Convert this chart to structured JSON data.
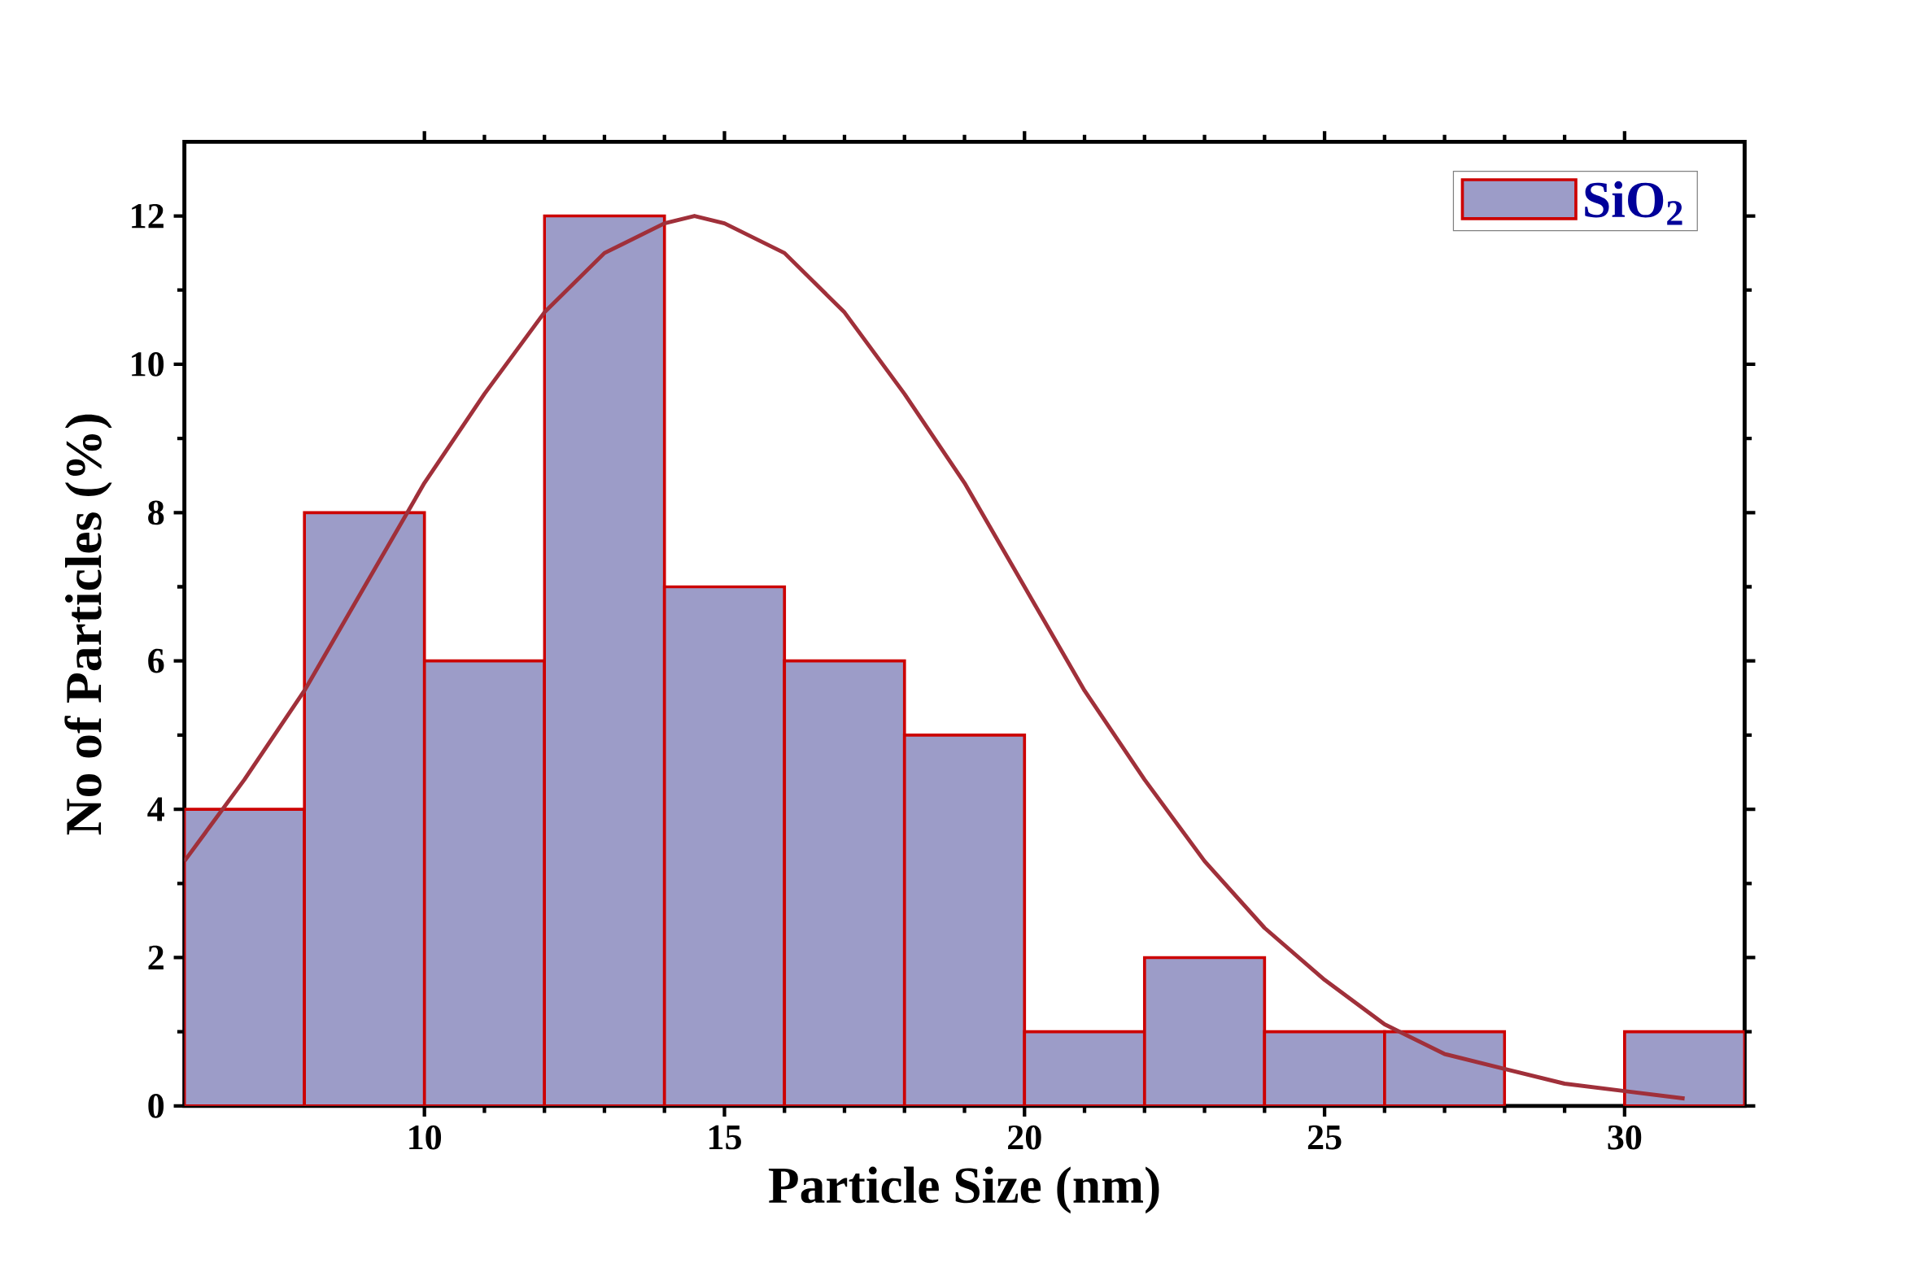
{
  "chart_data": {
    "type": "histogram",
    "xlabel": "Particle Size (nm)",
    "ylabel": "No of Particles (%)",
    "bins": [
      6,
      8,
      10,
      12,
      14,
      16,
      18,
      20,
      22,
      24,
      26,
      28,
      30,
      32
    ],
    "series": [
      {
        "name": "SiO$_{2}$",
        "color": "#9c9cc8",
        "values": [
          4,
          8,
          6,
          12,
          7,
          6,
          5,
          1,
          2,
          1,
          1,
          0,
          1
        ]
      },
      {
        "type": "line",
        "color": "#a0303a",
        "x": [
          6,
          7,
          8,
          9,
          10,
          11,
          12,
          13,
          14,
          14.5,
          15,
          16,
          17,
          18,
          19,
          20,
          21,
          22,
          23,
          24,
          25,
          26,
          27,
          28,
          29,
          30,
          31
        ],
        "values": [
          3.3,
          4.4,
          5.6,
          7.0,
          8.4,
          9.6,
          10.7,
          11.5,
          11.9,
          12,
          11.9,
          11.5,
          10.7,
          9.6,
          8.4,
          7.0,
          5.6,
          4.4,
          3.3,
          2.4,
          1.7,
          1.1,
          0.7,
          0.5,
          0.3,
          0.2,
          0.1
        ]
      }
    ],
    "xlim": [
      6,
      32
    ],
    "ylim": [
      0,
      13
    ],
    "xticks": [
      10,
      15,
      20,
      25,
      30
    ],
    "yticks": [
      0,
      2,
      4,
      6,
      8,
      10,
      12
    ],
    "legend": "top right",
    "marker": "none",
    "line_style": "solid"
  }
}
